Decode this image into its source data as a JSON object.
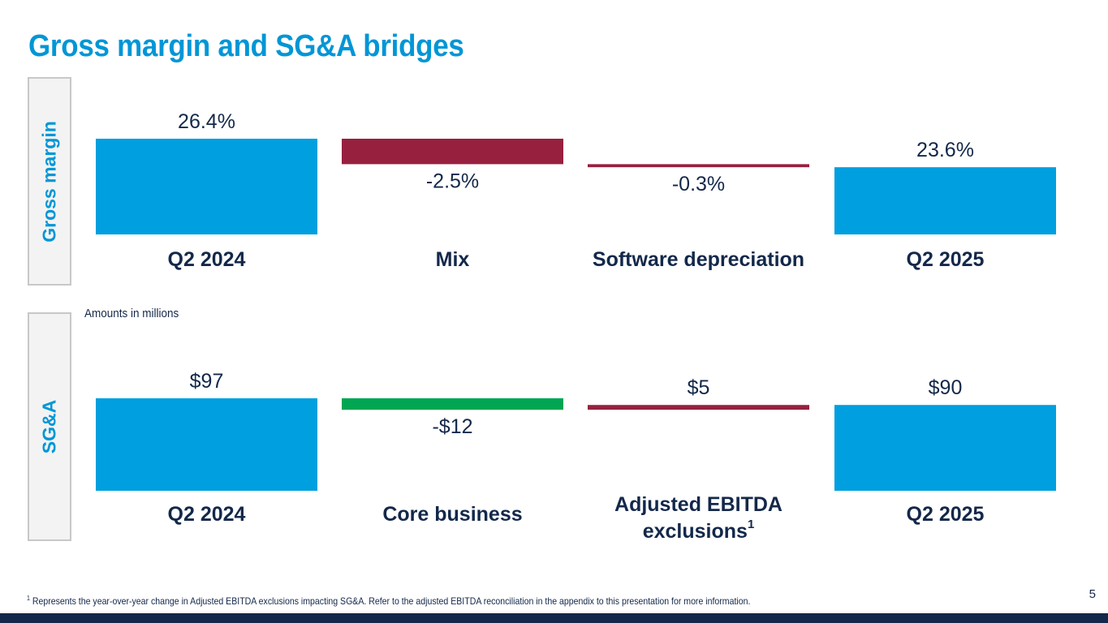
{
  "title": "Gross margin and SG&A bridges",
  "sections": {
    "gross_margin_label": "Gross margin",
    "sga_label": "SG&A",
    "sga_units_note": "Amounts in millions"
  },
  "colors": {
    "total": "#009fdf",
    "decrease_red": "#97203f",
    "decrease_green": "#00a651",
    "increase_red": "#97203f",
    "text_dark": "#13284a",
    "accent": "#0096d6"
  },
  "chart_data": [
    {
      "type": "bar",
      "subtype": "waterfall",
      "title": "Gross margin",
      "categories": [
        "Q2 2024",
        "Mix",
        "Software depreciation",
        "Q2 2025"
      ],
      "values": [
        26.4,
        -2.5,
        -0.3,
        23.6
      ],
      "kinds": [
        "total",
        "delta",
        "delta",
        "total"
      ],
      "data_labels": [
        "26.4%",
        "-2.5%",
        "-0.3%",
        "23.6%"
      ],
      "bar_colors": [
        "#009fdf",
        "#97203f",
        "#97203f",
        "#009fdf"
      ],
      "unit": "%",
      "baseline": 17.0,
      "ymax": 26.4
    },
    {
      "type": "bar",
      "subtype": "waterfall",
      "title": "SG&A",
      "categories": [
        "Q2 2024",
        "Core business",
        "Adjusted EBITDA exclusions",
        "Q2 2025"
      ],
      "category_superscripts": [
        "",
        "",
        "1",
        ""
      ],
      "values": [
        97,
        -12,
        5,
        90
      ],
      "kinds": [
        "total",
        "delta",
        "delta",
        "total"
      ],
      "data_labels": [
        "$97",
        "-$12",
        "$5",
        "$90"
      ],
      "bar_colors": [
        "#009fdf",
        "#00a651",
        "#97203f",
        "#009fdf"
      ],
      "unit": "$M",
      "baseline": 0,
      "ymax": 97
    }
  ],
  "footnote": {
    "marker": "1",
    "text": "Represents the year-over-year change in Adjusted EBITDA exclusions impacting SG&A. Refer to the adjusted EBITDA reconciliation in the appendix to this presentation for more information."
  },
  "page_number": "5"
}
